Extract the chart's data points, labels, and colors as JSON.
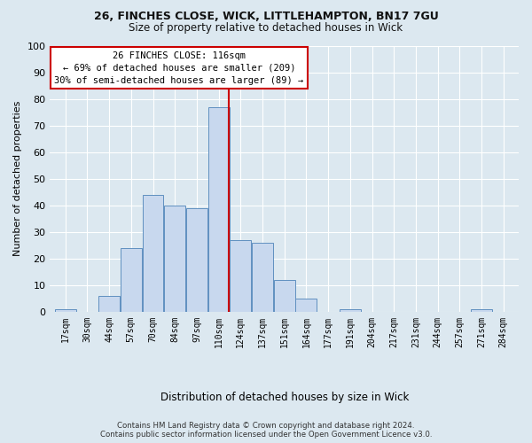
{
  "title1": "26, FINCHES CLOSE, WICK, LITTLEHAMPTON, BN17 7GU",
  "title2": "Size of property relative to detached houses in Wick",
  "xlabel": "Distribution of detached houses by size in Wick",
  "ylabel": "Number of detached properties",
  "footer1": "Contains HM Land Registry data © Crown copyright and database right 2024.",
  "footer2": "Contains public sector information licensed under the Open Government Licence v3.0.",
  "annotation_line1": "26 FINCHES CLOSE: 116sqm",
  "annotation_line2": "← 69% of detached houses are smaller (209)",
  "annotation_line3": "30% of semi-detached houses are larger (89) →",
  "property_sqm": 116,
  "bar_color": "#c8d8ee",
  "bar_edgecolor": "#6090c0",
  "vline_color": "#cc0000",
  "annotation_box_edgecolor": "#cc0000",
  "annotation_box_facecolor": "#ffffff",
  "bg_color": "#dce8f0",
  "grid_color": "#ffffff",
  "categories": [
    "17sqm",
    "30sqm",
    "44sqm",
    "57sqm",
    "70sqm",
    "84sqm",
    "97sqm",
    "110sqm",
    "124sqm",
    "137sqm",
    "151sqm",
    "164sqm",
    "177sqm",
    "191sqm",
    "204sqm",
    "217sqm",
    "231sqm",
    "244sqm",
    "257sqm",
    "271sqm",
    "284sqm"
  ],
  "values": [
    1,
    0,
    6,
    24,
    44,
    40,
    39,
    77,
    27,
    26,
    12,
    5,
    0,
    1,
    0,
    0,
    0,
    0,
    0,
    1,
    0
  ],
  "ylim": [
    0,
    100
  ],
  "yticks": [
    0,
    10,
    20,
    30,
    40,
    50,
    60,
    70,
    80,
    90,
    100
  ],
  "bin_width": 13
}
